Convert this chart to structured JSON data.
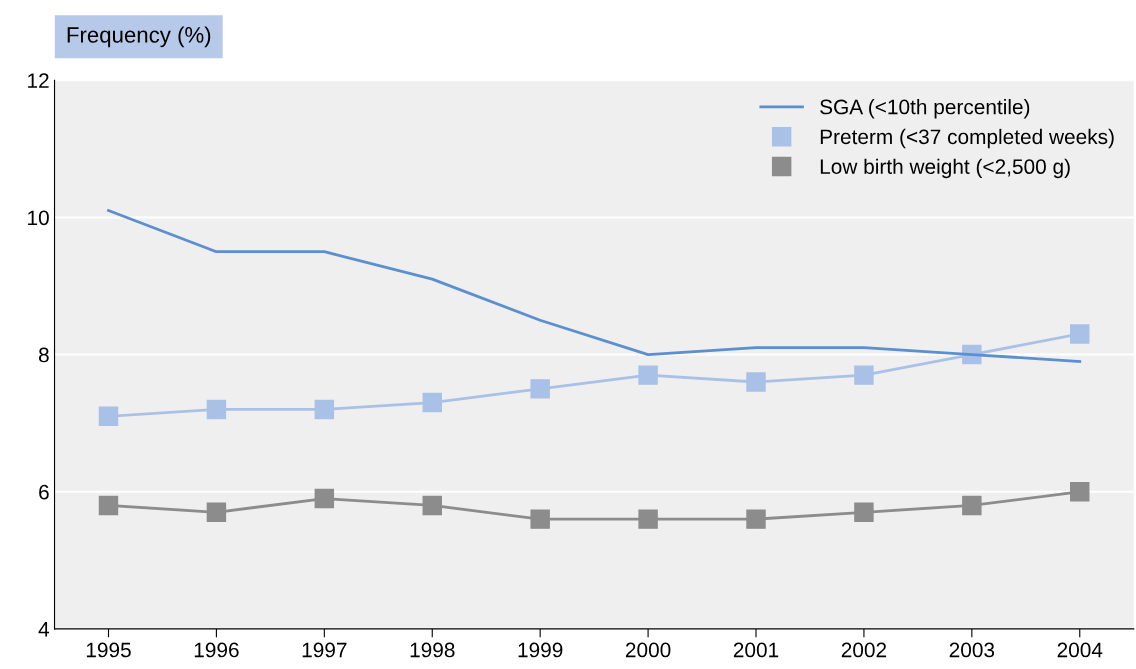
{
  "chart_data": {
    "type": "line",
    "ylabel": "Frequency (%)",
    "categories": [
      "1995",
      "1996",
      "1997",
      "1998",
      "1999",
      "2000",
      "2001",
      "2002",
      "2003",
      "2004"
    ],
    "series": [
      {
        "name": "SGA (<10th percentile)",
        "color": "#5b8fd0",
        "marker": "none",
        "values": [
          10.1,
          9.5,
          9.5,
          9.1,
          8.5,
          8.0,
          8.1,
          8.1,
          8.0,
          7.9
        ]
      },
      {
        "name": "Preterm (<37 completed weeks)",
        "color": "#a9c1e6",
        "marker": "square",
        "values": [
          7.1,
          7.2,
          7.2,
          7.3,
          7.5,
          7.7,
          7.6,
          7.7,
          8.0,
          8.3
        ]
      },
      {
        "name": "Low birth weight (<2,500 g)",
        "color": "#8c8c8c",
        "marker": "square",
        "values": [
          5.8,
          5.7,
          5.9,
          5.8,
          5.6,
          5.6,
          5.6,
          5.7,
          5.8,
          6.0
        ]
      }
    ],
    "ylim": [
      4,
      12
    ],
    "yticks": [
      4,
      6,
      8,
      10,
      12
    ],
    "grid": "y",
    "legend": "top right",
    "line_style": "solid"
  }
}
